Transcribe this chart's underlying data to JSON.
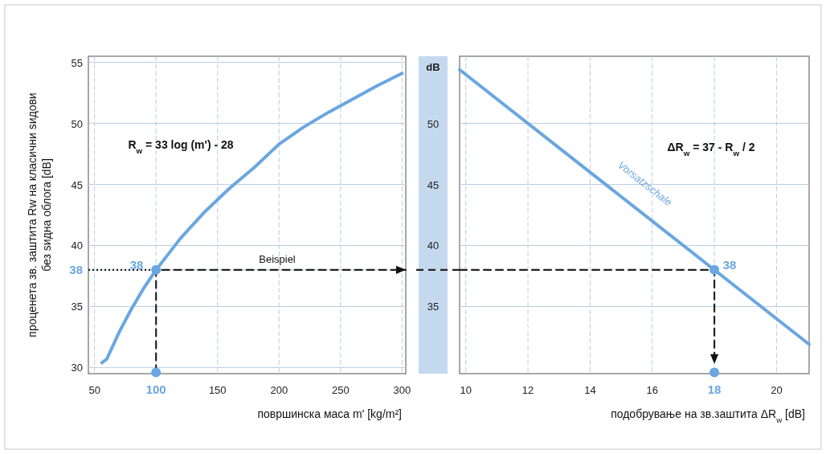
{
  "chart_data": [
    {
      "type": "line",
      "xlabel": "површинска маса  m' [kg/m²]",
      "ylabel": "проценета зв. заштита  Rw на класични ѕидови\nбез ѕидна облога [dB]",
      "xlim": [
        45,
        303
      ],
      "ylim": [
        29.5,
        55.5
      ],
      "xticks": [
        50,
        100,
        150,
        200,
        250,
        300
      ],
      "yticks": [
        30,
        35,
        38,
        40,
        45,
        50,
        55
      ],
      "grid": true,
      "series": [
        {
          "color": "#6aa6e0",
          "line_style": "solid",
          "x": [
            56,
            60,
            70,
            80,
            90,
            100,
            120,
            140,
            160,
            180,
            200,
            220,
            240,
            260,
            280,
            300
          ],
          "values": [
            30.4,
            30.7,
            32.9,
            34.8,
            36.5,
            38.0,
            40.6,
            42.8,
            44.7,
            46.4,
            48.3,
            49.7,
            50.9,
            52.0,
            53.1,
            54.1
          ]
        },
        {
          "color": "#222222",
          "line_style": "dashed",
          "x": [
            100,
            100,
            303
          ],
          "values": [
            29.6,
            38,
            38
          ]
        },
        {
          "color": "#222222",
          "line_style": "dotted",
          "x": [
            45,
            100
          ],
          "values": [
            38,
            38
          ]
        },
        {
          "type": "scatter",
          "color": "#6aa6e0",
          "marker": "circle",
          "x": [
            100,
            100
          ],
          "values": [
            38,
            29.6
          ]
        }
      ],
      "annotations": [
        "R$_{w}$ = 33 log (m') - 28",
        "Beispiel",
        "38"
      ]
    },
    {
      "type": "line",
      "xlabel": "подобрување на зв.заштита  ΔR$_{w}$ [dB]",
      "ylabel": "dB",
      "xlim": [
        9.8,
        21.05
      ],
      "ylim": [
        29.5,
        55.5
      ],
      "xticks": [
        10,
        12,
        14,
        16,
        18,
        20
      ],
      "yticks": [
        35,
        40,
        45,
        50
      ],
      "grid": true,
      "series": [
        {
          "color": "#6aa6e0",
          "line_style": "solid",
          "x": [
            9.8,
            21.05
          ],
          "values": [
            54.4,
            31.9
          ]
        },
        {
          "color": "#222222",
          "line_style": "dashed",
          "x": [
            9.8,
            18,
            18
          ],
          "values": [
            38,
            38,
            30.3
          ]
        },
        {
          "type": "scatter",
          "color": "#6aa6e0",
          "marker": "circle",
          "x": [
            18,
            18
          ],
          "values": [
            38,
            29.6
          ]
        }
      ],
      "annotations": [
        "ΔR$_{w}$ = 37 - R$_{w}$ / 2",
        "Vorsatzschale",
        "38"
      ]
    }
  ]
}
